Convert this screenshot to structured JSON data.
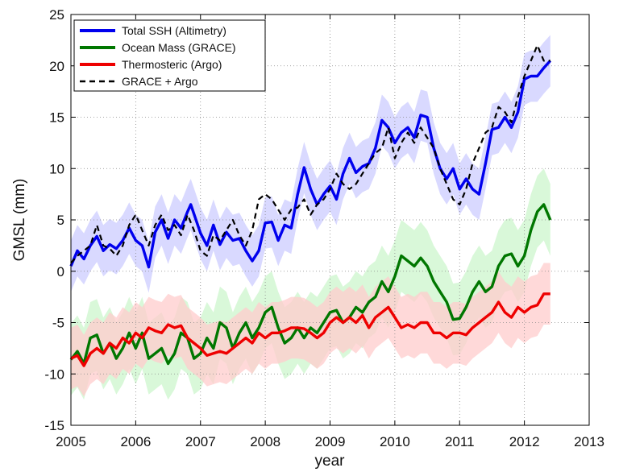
{
  "chart_data": {
    "type": "line",
    "xlabel": "year",
    "ylabel": "GMSL (mm)",
    "xlim": [
      2005,
      2013
    ],
    "ylim": [
      -15,
      25
    ],
    "xticks": [
      2005,
      2006,
      2007,
      2008,
      2009,
      2010,
      2011,
      2012,
      2013
    ],
    "yticks": [
      -15,
      -10,
      -5,
      0,
      5,
      10,
      15,
      20,
      25
    ],
    "grid": "dotted",
    "legend_position": "top-left",
    "series": [
      {
        "name": "Total SSH (Altimetry)",
        "color": "#0000ee",
        "band_color": "#ccccff",
        "style": "solid",
        "band_width": 2.5,
        "points": [
          [
            2005.0,
            0.5
          ],
          [
            2005.1,
            2.0
          ],
          [
            2005.2,
            1.2
          ],
          [
            2005.3,
            2.5
          ],
          [
            2005.4,
            3.4
          ],
          [
            2005.5,
            2.0
          ],
          [
            2005.6,
            2.6
          ],
          [
            2005.7,
            2.2
          ],
          [
            2005.8,
            3.0
          ],
          [
            2005.9,
            4.2
          ],
          [
            2006.0,
            3.0
          ],
          [
            2006.1,
            2.5
          ],
          [
            2006.2,
            0.4
          ],
          [
            2006.3,
            3.8
          ],
          [
            2006.4,
            5.0
          ],
          [
            2006.5,
            3.2
          ],
          [
            2006.6,
            5.0
          ],
          [
            2006.7,
            4.2
          ],
          [
            2006.8,
            5.8
          ],
          [
            2006.85,
            6.5
          ],
          [
            2007.0,
            3.7
          ],
          [
            2007.1,
            2.5
          ],
          [
            2007.2,
            4.5
          ],
          [
            2007.3,
            2.6
          ],
          [
            2007.4,
            3.8
          ],
          [
            2007.5,
            3.0
          ],
          [
            2007.6,
            3.2
          ],
          [
            2007.7,
            2.0
          ],
          [
            2007.8,
            1.0
          ],
          [
            2007.9,
            2.0
          ],
          [
            2008.0,
            4.7
          ],
          [
            2008.1,
            4.8
          ],
          [
            2008.2,
            3.0
          ],
          [
            2008.3,
            4.5
          ],
          [
            2008.4,
            4.2
          ],
          [
            2008.5,
            7.5
          ],
          [
            2008.6,
            10.1
          ],
          [
            2008.7,
            8.0
          ],
          [
            2008.8,
            6.5
          ],
          [
            2008.9,
            7.5
          ],
          [
            2009.0,
            8.3
          ],
          [
            2009.1,
            7.0
          ],
          [
            2009.2,
            9.5
          ],
          [
            2009.3,
            11.0
          ],
          [
            2009.4,
            9.6
          ],
          [
            2009.5,
            10.2
          ],
          [
            2009.6,
            10.5
          ],
          [
            2009.7,
            12.0
          ],
          [
            2009.8,
            14.7
          ],
          [
            2009.9,
            14.0
          ],
          [
            2010.0,
            12.5
          ],
          [
            2010.1,
            13.5
          ],
          [
            2010.2,
            14.0
          ],
          [
            2010.3,
            13.0
          ],
          [
            2010.4,
            15.2
          ],
          [
            2010.5,
            15.0
          ],
          [
            2010.6,
            12.0
          ],
          [
            2010.7,
            10.0
          ],
          [
            2010.8,
            9.0
          ],
          [
            2010.9,
            10.0
          ],
          [
            2011.0,
            8.0
          ],
          [
            2011.1,
            9.0
          ],
          [
            2011.2,
            8.0
          ],
          [
            2011.3,
            7.5
          ],
          [
            2011.4,
            10.5
          ],
          [
            2011.5,
            13.8
          ],
          [
            2011.6,
            14.0
          ],
          [
            2011.7,
            15.0
          ],
          [
            2011.8,
            14.0
          ],
          [
            2011.9,
            15.5
          ],
          [
            2012.0,
            18.7
          ],
          [
            2012.1,
            19.0
          ],
          [
            2012.2,
            19.0
          ],
          [
            2012.3,
            19.8
          ],
          [
            2012.4,
            20.5
          ]
        ]
      },
      {
        "name": "Ocean Mass (GRACE)",
        "color": "#007700",
        "band_color": "#ccf5cc",
        "style": "solid",
        "band_width": 3.5,
        "points": [
          [
            2005.0,
            -8.6
          ],
          [
            2005.1,
            -7.8
          ],
          [
            2005.2,
            -9.0
          ],
          [
            2005.3,
            -6.5
          ],
          [
            2005.4,
            -6.2
          ],
          [
            2005.5,
            -8.0
          ],
          [
            2005.6,
            -7.0
          ],
          [
            2005.7,
            -8.5
          ],
          [
            2005.8,
            -7.5
          ],
          [
            2005.9,
            -6.0
          ],
          [
            2006.0,
            -7.5
          ],
          [
            2006.1,
            -6.0
          ],
          [
            2006.2,
            -8.5
          ],
          [
            2006.3,
            -8.0
          ],
          [
            2006.4,
            -7.5
          ],
          [
            2006.5,
            -9.0
          ],
          [
            2006.6,
            -8.0
          ],
          [
            2006.7,
            -6.0
          ],
          [
            2006.8,
            -6.5
          ],
          [
            2006.9,
            -8.5
          ],
          [
            2007.0,
            -8.0
          ],
          [
            2007.1,
            -6.5
          ],
          [
            2007.2,
            -7.5
          ],
          [
            2007.3,
            -5.0
          ],
          [
            2007.4,
            -5.5
          ],
          [
            2007.5,
            -7.5
          ],
          [
            2007.6,
            -6.0
          ],
          [
            2007.7,
            -5.0
          ],
          [
            2007.8,
            -6.5
          ],
          [
            2007.9,
            -5.5
          ],
          [
            2008.0,
            -4.0
          ],
          [
            2008.1,
            -3.5
          ],
          [
            2008.2,
            -5.5
          ],
          [
            2008.3,
            -7.0
          ],
          [
            2008.4,
            -6.5
          ],
          [
            2008.5,
            -5.5
          ],
          [
            2008.6,
            -6.5
          ],
          [
            2008.7,
            -5.5
          ],
          [
            2008.8,
            -6.0
          ],
          [
            2008.9,
            -5.0
          ],
          [
            2009.0,
            -4.0
          ],
          [
            2009.1,
            -3.8
          ],
          [
            2009.2,
            -5.0
          ],
          [
            2009.3,
            -4.5
          ],
          [
            2009.4,
            -3.5
          ],
          [
            2009.5,
            -4.0
          ],
          [
            2009.6,
            -3.0
          ],
          [
            2009.7,
            -2.5
          ],
          [
            2009.8,
            -1.0
          ],
          [
            2009.9,
            -2.0
          ],
          [
            2010.0,
            -0.5
          ],
          [
            2010.1,
            1.5
          ],
          [
            2010.2,
            1.0
          ],
          [
            2010.3,
            0.5
          ],
          [
            2010.4,
            1.3
          ],
          [
            2010.5,
            0.5
          ],
          [
            2010.6,
            -1.0
          ],
          [
            2010.7,
            -2.0
          ],
          [
            2010.8,
            -3.0
          ],
          [
            2010.9,
            -4.7
          ],
          [
            2011.0,
            -4.6
          ],
          [
            2011.1,
            -3.5
          ],
          [
            2011.2,
            -2.0
          ],
          [
            2011.3,
            -1.0
          ],
          [
            2011.4,
            -2.0
          ],
          [
            2011.5,
            -1.5
          ],
          [
            2011.6,
            0.5
          ],
          [
            2011.7,
            1.5
          ],
          [
            2011.8,
            1.7
          ],
          [
            2011.9,
            0.5
          ],
          [
            2012.0,
            1.5
          ],
          [
            2012.1,
            4.0
          ],
          [
            2012.2,
            5.8
          ],
          [
            2012.3,
            6.5
          ],
          [
            2012.4,
            5.0
          ]
        ]
      },
      {
        "name": "Thermosteric (Argo)",
        "color": "#ee0000",
        "band_color": "#ffcccc",
        "style": "solid",
        "band_width": 3.0,
        "points": [
          [
            2005.0,
            -8.5
          ],
          [
            2005.1,
            -8.2
          ],
          [
            2005.2,
            -9.2
          ],
          [
            2005.3,
            -8.0
          ],
          [
            2005.4,
            -7.5
          ],
          [
            2005.5,
            -8.0
          ],
          [
            2005.6,
            -7.0
          ],
          [
            2005.7,
            -7.5
          ],
          [
            2005.8,
            -6.5
          ],
          [
            2005.9,
            -7.0
          ],
          [
            2006.0,
            -6.0
          ],
          [
            2006.1,
            -6.5
          ],
          [
            2006.2,
            -5.5
          ],
          [
            2006.3,
            -5.8
          ],
          [
            2006.4,
            -6.0
          ],
          [
            2006.5,
            -5.2
          ],
          [
            2006.6,
            -5.5
          ],
          [
            2006.7,
            -5.3
          ],
          [
            2006.8,
            -6.5
          ],
          [
            2006.9,
            -7.0
          ],
          [
            2007.0,
            -7.5
          ],
          [
            2007.1,
            -8.2
          ],
          [
            2007.2,
            -8.0
          ],
          [
            2007.3,
            -7.8
          ],
          [
            2007.4,
            -8.0
          ],
          [
            2007.5,
            -7.5
          ],
          [
            2007.6,
            -7.0
          ],
          [
            2007.7,
            -6.5
          ],
          [
            2007.8,
            -7.0
          ],
          [
            2007.9,
            -6.0
          ],
          [
            2008.0,
            -6.5
          ],
          [
            2008.1,
            -6.0
          ],
          [
            2008.2,
            -6.0
          ],
          [
            2008.3,
            -5.8
          ],
          [
            2008.4,
            -5.5
          ],
          [
            2008.5,
            -5.5
          ],
          [
            2008.6,
            -5.6
          ],
          [
            2008.7,
            -6.0
          ],
          [
            2008.8,
            -6.5
          ],
          [
            2008.9,
            -6.0
          ],
          [
            2009.0,
            -5.0
          ],
          [
            2009.1,
            -4.5
          ],
          [
            2009.2,
            -5.0
          ],
          [
            2009.3,
            -4.5
          ],
          [
            2009.4,
            -5.0
          ],
          [
            2009.5,
            -4.3
          ],
          [
            2009.6,
            -5.5
          ],
          [
            2009.7,
            -4.5
          ],
          [
            2009.8,
            -4.0
          ],
          [
            2009.9,
            -3.5
          ],
          [
            2010.0,
            -4.5
          ],
          [
            2010.1,
            -5.5
          ],
          [
            2010.2,
            -5.2
          ],
          [
            2010.3,
            -5.5
          ],
          [
            2010.4,
            -5.0
          ],
          [
            2010.5,
            -5.0
          ],
          [
            2010.6,
            -6.0
          ],
          [
            2010.7,
            -6.0
          ],
          [
            2010.8,
            -6.5
          ],
          [
            2010.9,
            -6.0
          ],
          [
            2011.0,
            -6.0
          ],
          [
            2011.1,
            -6.2
          ],
          [
            2011.2,
            -5.5
          ],
          [
            2011.3,
            -5.0
          ],
          [
            2011.4,
            -4.5
          ],
          [
            2011.5,
            -4.0
          ],
          [
            2011.6,
            -3.0
          ],
          [
            2011.7,
            -4.0
          ],
          [
            2011.8,
            -4.5
          ],
          [
            2011.9,
            -3.5
          ],
          [
            2012.0,
            -4.0
          ],
          [
            2012.1,
            -3.5
          ],
          [
            2012.2,
            -3.3
          ],
          [
            2012.3,
            -2.2
          ],
          [
            2012.4,
            -2.2
          ]
        ]
      },
      {
        "name": "GRACE + Argo",
        "color": "#000000",
        "style": "dashed",
        "points": [
          [
            2005.0,
            0.8
          ],
          [
            2005.1,
            1.5
          ],
          [
            2005.2,
            2.0
          ],
          [
            2005.3,
            2.5
          ],
          [
            2005.4,
            4.5
          ],
          [
            2005.5,
            2.5
          ],
          [
            2005.6,
            2.2
          ],
          [
            2005.7,
            1.5
          ],
          [
            2005.8,
            2.5
          ],
          [
            2005.9,
            4.5
          ],
          [
            2006.0,
            5.5
          ],
          [
            2006.1,
            4.0
          ],
          [
            2006.2,
            2.5
          ],
          [
            2006.3,
            4.5
          ],
          [
            2006.4,
            5.5
          ],
          [
            2006.5,
            4.0
          ],
          [
            2006.6,
            4.5
          ],
          [
            2006.7,
            3.5
          ],
          [
            2006.8,
            5.5
          ],
          [
            2006.9,
            4.0
          ],
          [
            2007.0,
            2.0
          ],
          [
            2007.1,
            1.5
          ],
          [
            2007.2,
            3.5
          ],
          [
            2007.3,
            3.0
          ],
          [
            2007.4,
            4.0
          ],
          [
            2007.5,
            5.0
          ],
          [
            2007.6,
            3.5
          ],
          [
            2007.7,
            2.5
          ],
          [
            2007.8,
            4.0
          ],
          [
            2007.9,
            7.0
          ],
          [
            2008.0,
            7.5
          ],
          [
            2008.1,
            7.0
          ],
          [
            2008.2,
            6.0
          ],
          [
            2008.3,
            5.0
          ],
          [
            2008.4,
            6.0
          ],
          [
            2008.5,
            6.2
          ],
          [
            2008.6,
            7.0
          ],
          [
            2008.7,
            5.5
          ],
          [
            2008.8,
            6.5
          ],
          [
            2008.9,
            7.0
          ],
          [
            2009.0,
            8.0
          ],
          [
            2009.1,
            9.5
          ],
          [
            2009.2,
            8.5
          ],
          [
            2009.3,
            8.0
          ],
          [
            2009.4,
            8.5
          ],
          [
            2009.5,
            9.5
          ],
          [
            2009.6,
            10.5
          ],
          [
            2009.7,
            11.5
          ],
          [
            2009.8,
            12.0
          ],
          [
            2009.9,
            14.0
          ],
          [
            2010.0,
            11.0
          ],
          [
            2010.1,
            12.5
          ],
          [
            2010.2,
            13.5
          ],
          [
            2010.3,
            12.5
          ],
          [
            2010.4,
            14.0
          ],
          [
            2010.5,
            13.0
          ],
          [
            2010.6,
            12.0
          ],
          [
            2010.7,
            10.0
          ],
          [
            2010.8,
            8.5
          ],
          [
            2010.9,
            7.0
          ],
          [
            2011.0,
            6.5
          ],
          [
            2011.1,
            8.0
          ],
          [
            2011.2,
            10.5
          ],
          [
            2011.3,
            12.0
          ],
          [
            2011.4,
            13.5
          ],
          [
            2011.5,
            14.0
          ],
          [
            2011.6,
            16.0
          ],
          [
            2011.7,
            15.5
          ],
          [
            2011.8,
            14.5
          ],
          [
            2011.9,
            17.0
          ],
          [
            2012.0,
            19.0
          ],
          [
            2012.1,
            20.5
          ],
          [
            2012.2,
            22.0
          ],
          [
            2012.3,
            20.5
          ],
          [
            2012.4,
            20.5
          ]
        ]
      }
    ]
  }
}
